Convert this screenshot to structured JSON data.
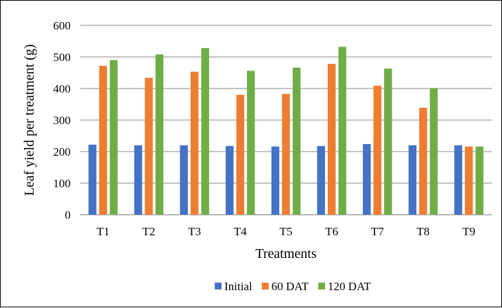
{
  "chart_data": {
    "type": "bar",
    "title": "",
    "xlabel": "Treatments",
    "ylabel": "Leaf yield per treatment (g)",
    "ylim": [
      0,
      600
    ],
    "yticks": [
      0,
      100,
      200,
      300,
      400,
      500,
      600
    ],
    "grid": true,
    "legend_position": "bottom",
    "categories": [
      "T1",
      "T2",
      "T3",
      "T4",
      "T5",
      "T6",
      "T7",
      "T8",
      "T9"
    ],
    "series": [
      {
        "name": "Initial",
        "color": "#4472C4",
        "values": [
          222,
          220,
          220,
          218,
          216,
          218,
          224,
          220,
          220
        ]
      },
      {
        "name": "60 DAT",
        "color": "#ED7D31",
        "values": [
          472,
          434,
          453,
          380,
          383,
          478,
          409,
          339,
          216
        ]
      },
      {
        "name": "120 DAT",
        "color": "#70AD47",
        "values": [
          490,
          508,
          528,
          456,
          466,
          532,
          463,
          401,
          216
        ]
      }
    ]
  }
}
